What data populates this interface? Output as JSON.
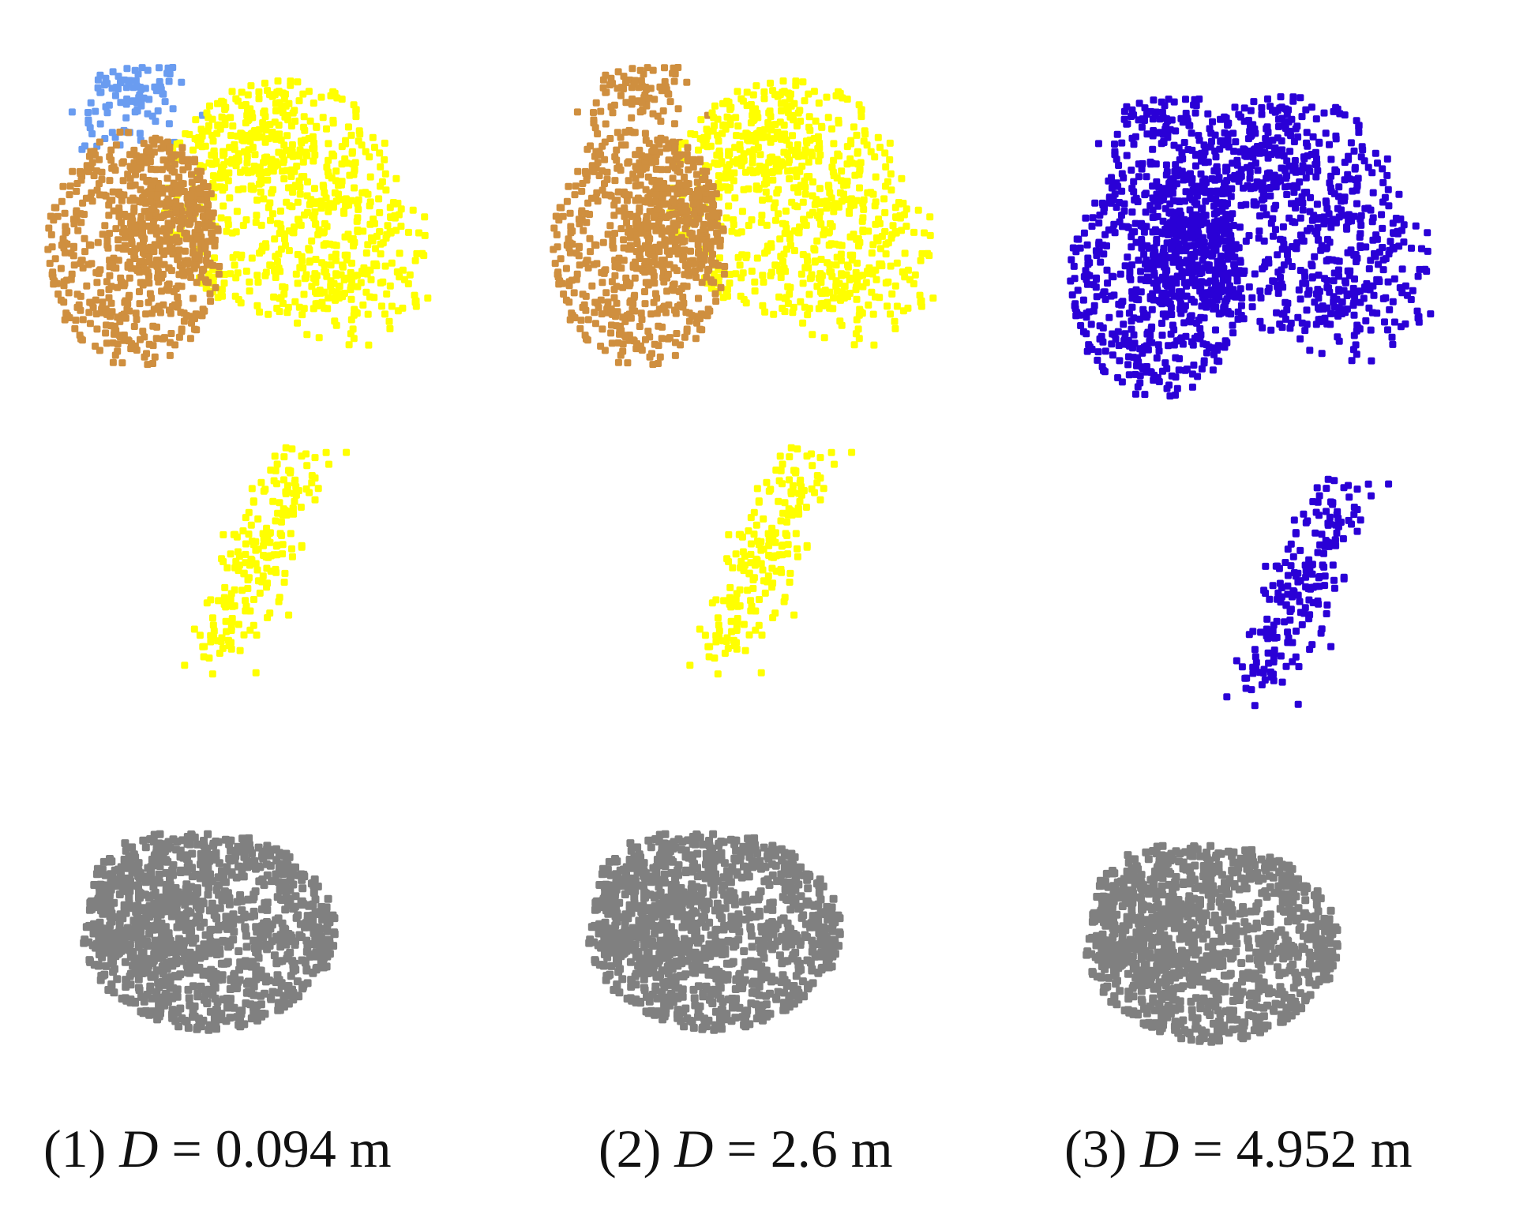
{
  "colors": {
    "background": "#ffffff",
    "light_blue": "#6a9cf0",
    "brown": "#cf8f3f",
    "yellow": "#ffff00",
    "dark_blue": "#2a00d6",
    "gray": "#808080"
  },
  "panels": [
    {
      "label": "(1)",
      "variable": "D",
      "equals": "=",
      "value": "0.094 m",
      "clusters": [
        "light_blue",
        "brown",
        "yellow"
      ]
    },
    {
      "label": "(2)",
      "variable": "D",
      "equals": "=",
      "value": "2.6 m",
      "clusters": [
        "brown",
        "yellow"
      ]
    },
    {
      "label": "(3)",
      "variable": "D",
      "equals": "=",
      "value": "4.952 m",
      "clusters": [
        "dark_blue"
      ]
    }
  ]
}
